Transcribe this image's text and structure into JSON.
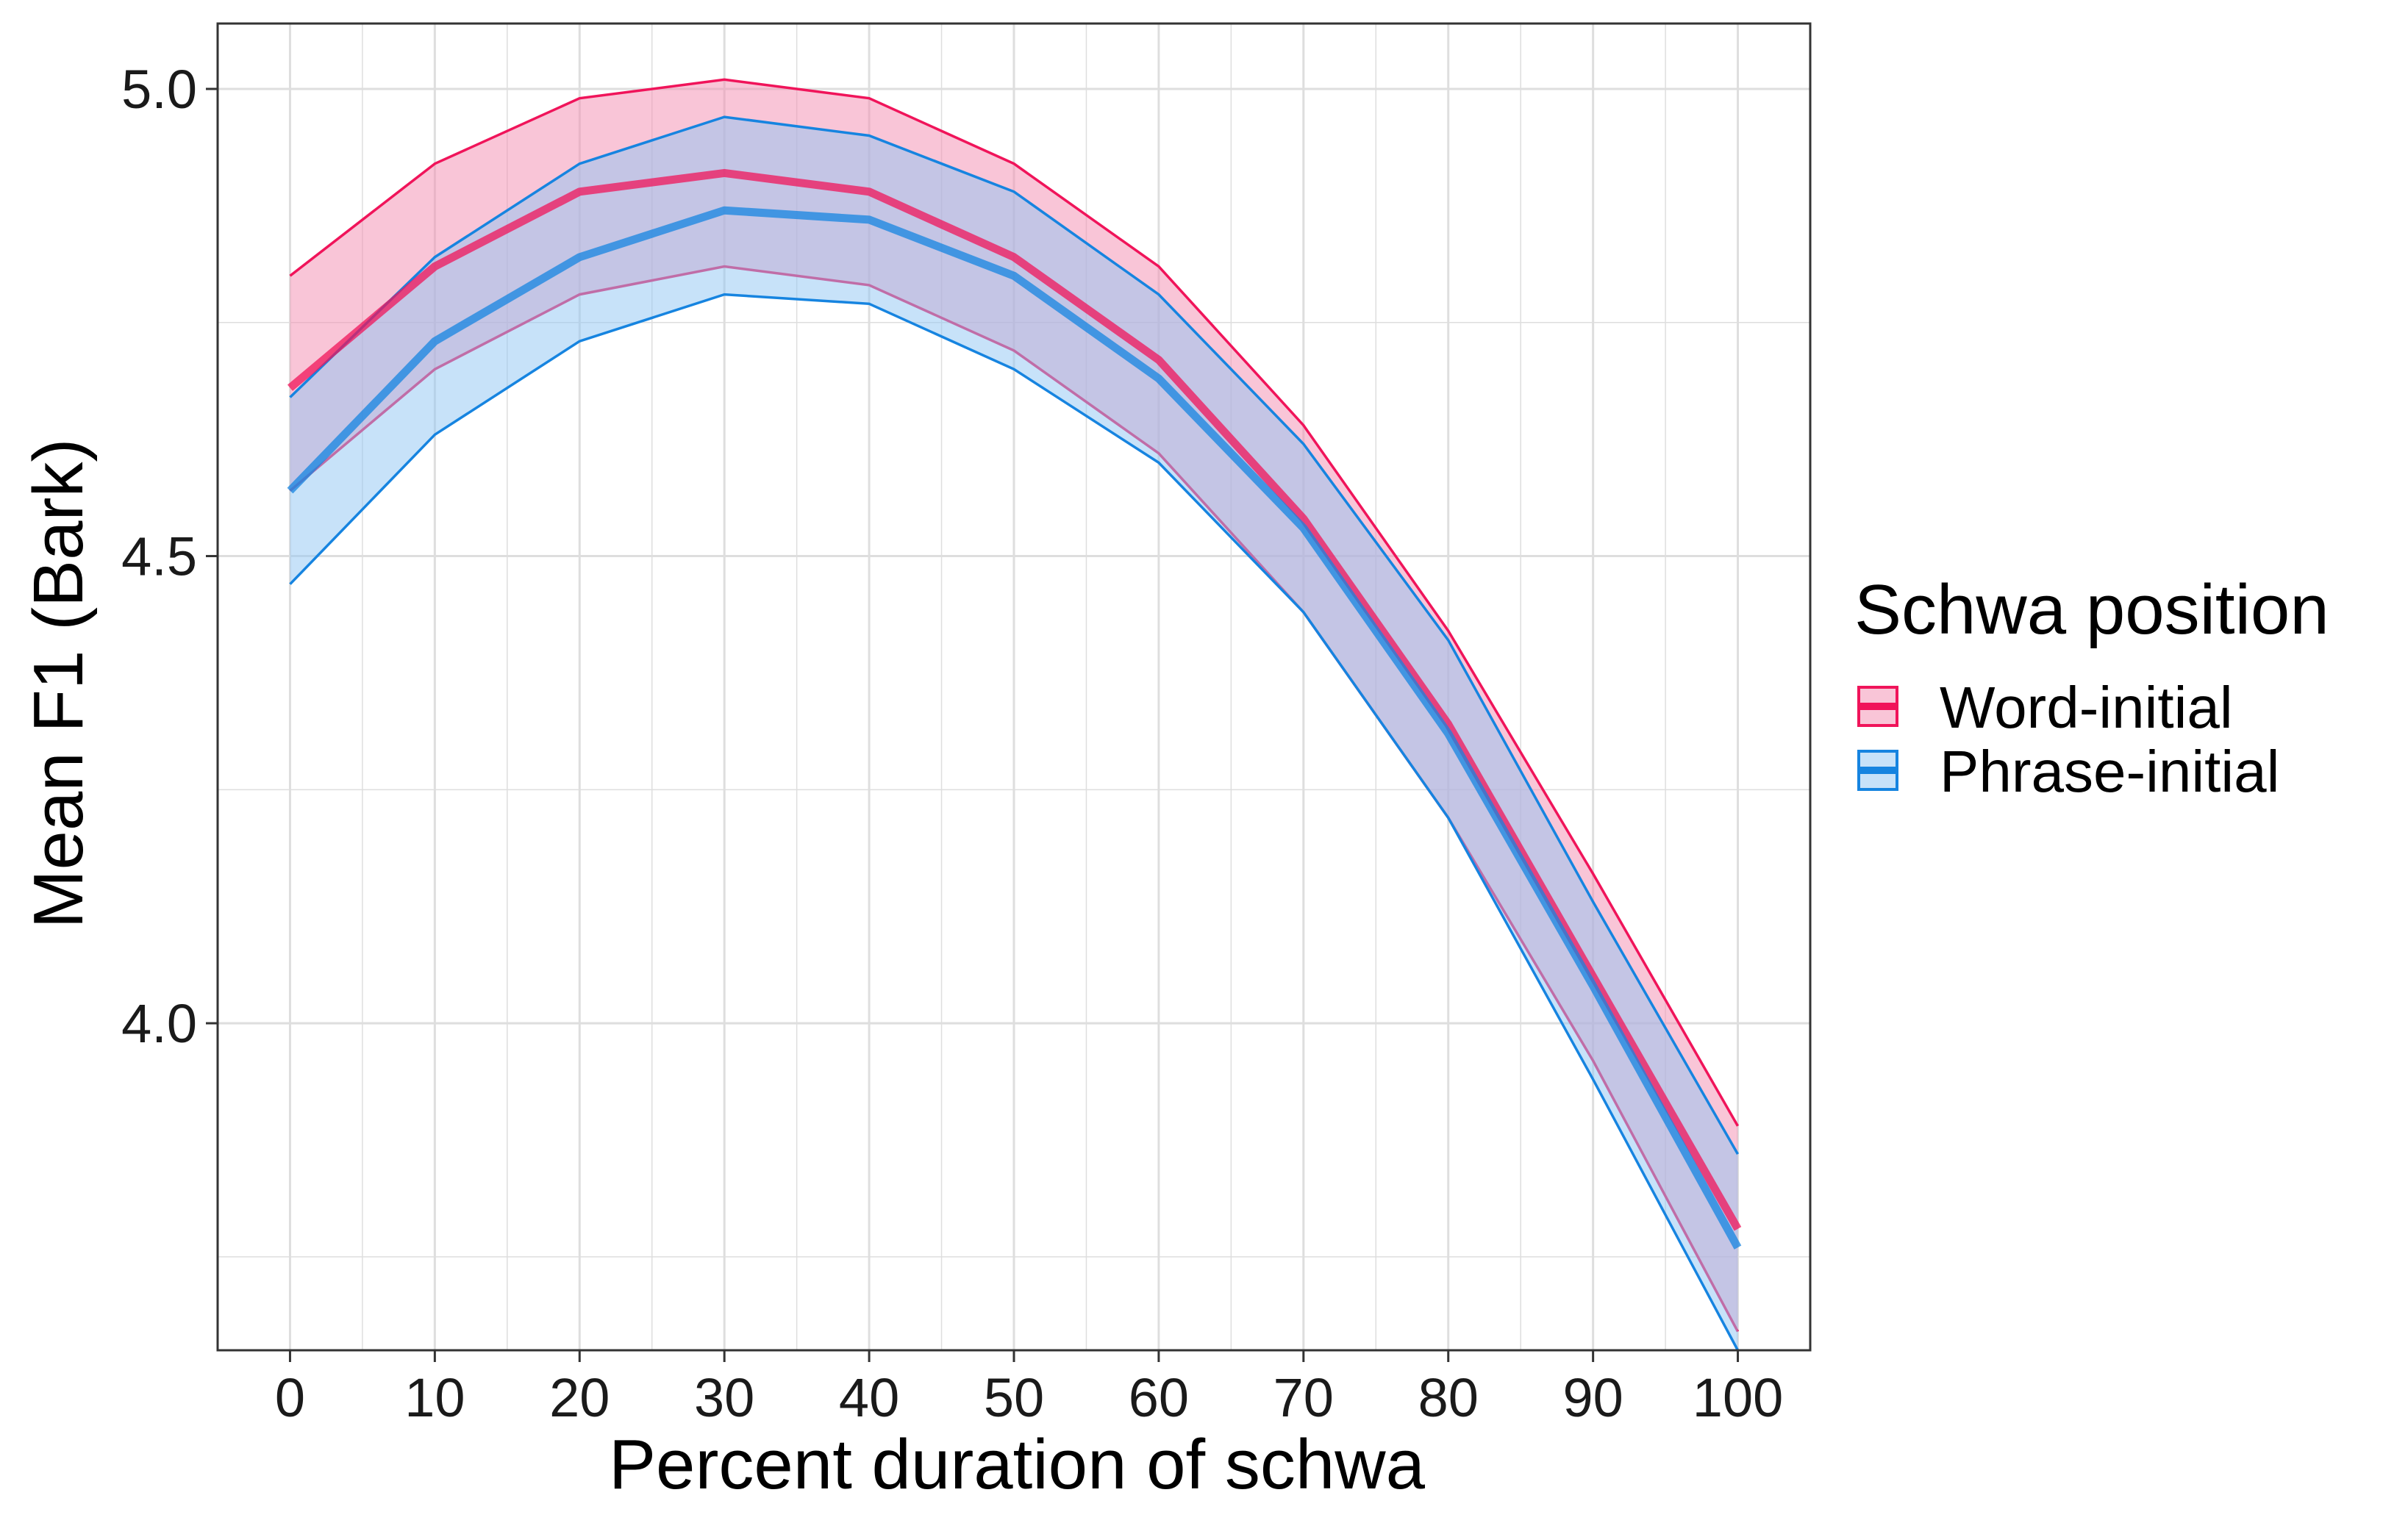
{
  "chart_data": {
    "type": "line",
    "title": "",
    "xlabel": "Percent duration of schwa",
    "ylabel": "Mean F1 (Bark)",
    "xlim": [
      -5,
      105
    ],
    "ylim": [
      3.65,
      5.07
    ],
    "x_ticks": [
      0,
      10,
      20,
      30,
      40,
      50,
      60,
      70,
      80,
      90,
      100
    ],
    "x_tick_labels": [
      "0",
      "10",
      "20",
      "30",
      "40",
      "50",
      "60",
      "70",
      "80",
      "90",
      "100"
    ],
    "y_ticks": [
      4.0,
      4.5,
      5.0
    ],
    "y_tick_labels": [
      "4.0",
      "4.5",
      "5.0"
    ],
    "y_minor_ticks": [
      3.75,
      4.25,
      4.75
    ],
    "x_minor_ticks": [
      5,
      15,
      25,
      35,
      45,
      55,
      65,
      75,
      85,
      95
    ],
    "grid": true,
    "legend": {
      "title": "Schwa position",
      "position": "right"
    },
    "x": [
      0,
      10,
      20,
      30,
      40,
      50,
      60,
      70,
      80,
      90,
      100
    ],
    "series": [
      {
        "name": "Word-initial",
        "color": "#f0145a",
        "fill": "#f48cb0",
        "values": [
          4.68,
          4.81,
          4.89,
          4.91,
          4.89,
          4.82,
          4.71,
          4.54,
          4.32,
          4.05,
          3.78
        ],
        "lower": [
          4.57,
          4.7,
          4.78,
          4.81,
          4.79,
          4.72,
          4.61,
          4.44,
          4.22,
          3.96,
          3.67
        ],
        "upper": [
          4.8,
          4.92,
          4.99,
          5.01,
          4.99,
          4.92,
          4.81,
          4.64,
          4.42,
          4.16,
          3.89
        ]
      },
      {
        "name": "Phrase-initial",
        "color": "#1684e0",
        "fill": "#8fc6f4",
        "values": [
          4.57,
          4.73,
          4.82,
          4.87,
          4.86,
          4.8,
          4.69,
          4.53,
          4.31,
          4.04,
          3.76
        ],
        "lower": [
          4.47,
          4.63,
          4.73,
          4.78,
          4.77,
          4.7,
          4.6,
          4.44,
          4.22,
          3.94,
          3.65
        ],
        "upper": [
          4.67,
          4.82,
          4.92,
          4.97,
          4.95,
          4.89,
          4.78,
          4.62,
          4.41,
          4.13,
          3.86
        ]
      }
    ]
  },
  "colors": {
    "panel_border": "#333333",
    "grid": "#dedede",
    "overlap": "#b28fd6"
  }
}
